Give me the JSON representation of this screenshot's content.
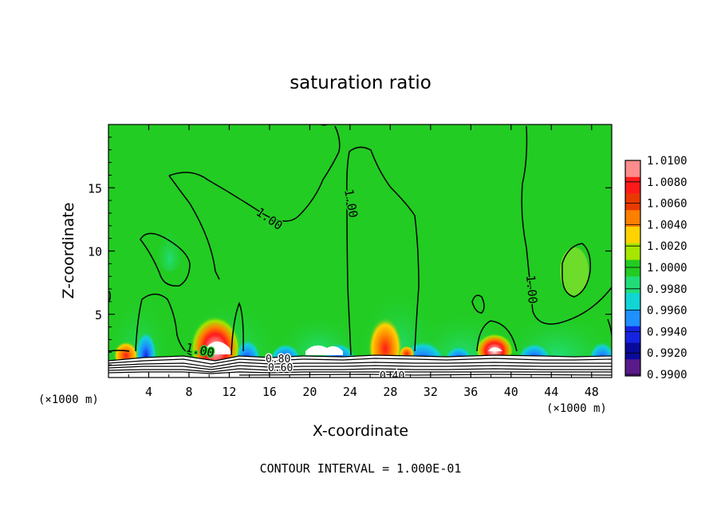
{
  "chart_data": {
    "type": "heatmap",
    "title": "saturation ratio",
    "xlabel": "X-coordinate",
    "ylabel": "Z-coordinate",
    "x_unit": "(×1000 m)",
    "x_unit_right": "(×1000 m)",
    "xlim": [
      0,
      50
    ],
    "ylim": [
      0,
      20
    ],
    "x_ticks": [
      4,
      8,
      12,
      16,
      20,
      24,
      28,
      32,
      36,
      40,
      44,
      48
    ],
    "y_ticks": [
      5,
      10,
      15
    ],
    "colorbar": {
      "levels": [
        "1.0100",
        "1.0080",
        "1.0060",
        "1.0040",
        "1.0020",
        "1.0000",
        "0.9980",
        "0.9960",
        "0.9940",
        "0.9920",
        "0.9900"
      ],
      "colors": [
        "#ff8c8c",
        "#ff1a1a",
        "#e83a00",
        "#ff7f00",
        "#ffd200",
        "#a6e600",
        "#22cc22",
        "#22dd77",
        "#11d4d4",
        "#1e90ff",
        "#1424e0",
        "#0a0a9a",
        "#5a1a8a"
      ]
    },
    "contour_labels": [
      "1.00",
      "1.00",
      "1.00",
      "1.00",
      "0.80",
      "0.60",
      "0.40"
    ],
    "footer": "CONTOUR INTERVAL = 1.000E-01"
  }
}
